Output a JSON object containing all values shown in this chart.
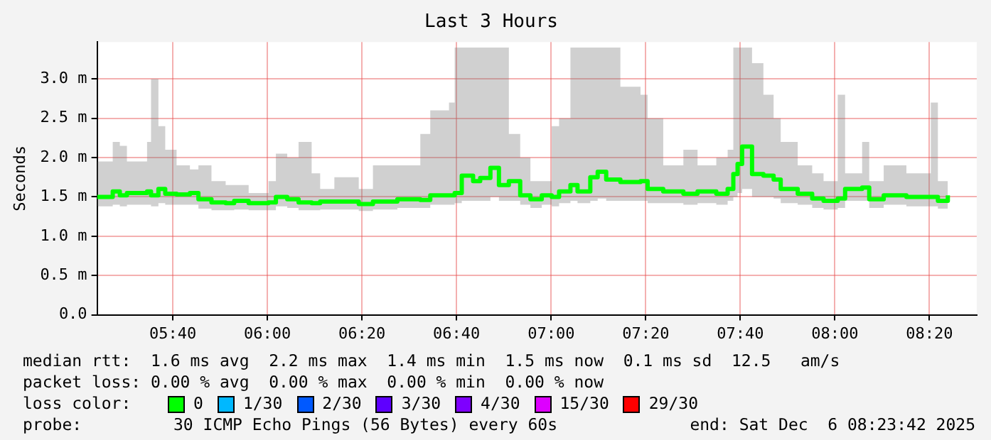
{
  "chart_data": {
    "type": "step",
    "title": "Last 3 Hours",
    "ylabel": "Seconds",
    "x": [
      5.4,
      5.455,
      5.48,
      5.505,
      5.576,
      5.59,
      5.616,
      5.64,
      5.68,
      5.727,
      5.757,
      5.803,
      5.853,
      5.883,
      5.934,
      6.004,
      6.03,
      6.07,
      6.11,
      6.156,
      6.186,
      6.236,
      6.322,
      6.372,
      6.458,
      6.539,
      6.574,
      6.64,
      6.66,
      6.685,
      6.725,
      6.75,
      6.786,
      6.816,
      6.851,
      6.891,
      6.927,
      6.967,
      7.002,
      7.028,
      7.068,
      7.093,
      7.138,
      7.164,
      7.194,
      7.244,
      7.315,
      7.34,
      7.395,
      7.466,
      7.516,
      7.582,
      7.622,
      7.642,
      7.657,
      7.673,
      7.698,
      7.708,
      7.748,
      7.784,
      7.809,
      7.869,
      7.92,
      7.96,
      8.01,
      8.036,
      8.096,
      8.121,
      8.172,
      8.252,
      8.338,
      8.363,
      8.398
    ],
    "series": [
      {
        "color": "#00ff00",
        "values": [
          1.5,
          1.57,
          1.52,
          1.55,
          1.57,
          1.52,
          1.6,
          1.54,
          1.53,
          1.55,
          1.47,
          1.43,
          1.42,
          1.45,
          1.42,
          1.43,
          1.5,
          1.47,
          1.43,
          1.42,
          1.44,
          1.44,
          1.41,
          1.44,
          1.47,
          1.46,
          1.52,
          1.52,
          1.55,
          1.77,
          1.7,
          1.74,
          1.87,
          1.65,
          1.7,
          1.52,
          1.47,
          1.52,
          1.5,
          1.57,
          1.65,
          1.57,
          1.75,
          1.82,
          1.72,
          1.69,
          1.7,
          1.6,
          1.57,
          1.54,
          1.57,
          1.54,
          1.6,
          1.79,
          1.92,
          2.14,
          2.14,
          1.79,
          1.77,
          1.72,
          1.6,
          1.54,
          1.48,
          1.45,
          1.48,
          1.6,
          1.62,
          1.47,
          1.52,
          1.5,
          1.5,
          1.45,
          1.52
        ],
        "lower": [
          1.38,
          1.4,
          1.38,
          1.4,
          1.4,
          1.38,
          1.42,
          1.4,
          1.4,
          1.4,
          1.35,
          1.33,
          1.33,
          1.34,
          1.33,
          1.33,
          1.38,
          1.36,
          1.33,
          1.33,
          1.34,
          1.34,
          1.32,
          1.34,
          1.36,
          1.36,
          1.4,
          1.4,
          1.42,
          1.45,
          1.45,
          1.45,
          1.5,
          1.45,
          1.45,
          1.4,
          1.36,
          1.4,
          1.38,
          1.42,
          1.45,
          1.42,
          1.45,
          1.48,
          1.45,
          1.45,
          1.45,
          1.42,
          1.42,
          1.4,
          1.42,
          1.4,
          1.45,
          1.5,
          1.55,
          1.6,
          1.6,
          1.5,
          1.5,
          1.48,
          1.42,
          1.4,
          1.36,
          1.34,
          1.36,
          1.45,
          1.45,
          1.36,
          1.4,
          1.38,
          1.38,
          1.35,
          1.4
        ],
        "upper": [
          1.95,
          2.2,
          2.15,
          1.95,
          2.2,
          3.0,
          2.4,
          2.1,
          1.9,
          1.85,
          1.9,
          1.7,
          1.65,
          1.65,
          1.55,
          1.7,
          2.05,
          2.0,
          2.2,
          1.8,
          1.6,
          1.75,
          1.6,
          1.9,
          1.9,
          2.3,
          2.6,
          2.7,
          3.4,
          3.4,
          3.4,
          3.4,
          3.4,
          3.4,
          2.3,
          2.0,
          1.7,
          1.7,
          2.4,
          2.5,
          3.4,
          3.4,
          3.4,
          3.4,
          3.4,
          2.9,
          2.8,
          2.5,
          1.9,
          2.1,
          1.9,
          2.0,
          2.1,
          3.4,
          3.4,
          3.4,
          3.4,
          3.2,
          2.8,
          2.5,
          2.2,
          1.9,
          1.8,
          1.7,
          2.8,
          1.8,
          2.2,
          1.7,
          1.9,
          1.8,
          2.7,
          1.7,
          1.7
        ]
      }
    ],
    "xlim": [
      5.4,
      8.5
    ],
    "xticks": [
      {
        "value": 5.6667,
        "label": "05:40"
      },
      {
        "value": 6,
        "label": "06:00"
      },
      {
        "value": 6.3333,
        "label": "06:20"
      },
      {
        "value": 6.6667,
        "label": "06:40"
      },
      {
        "value": 7,
        "label": "07:00"
      },
      {
        "value": 7.3333,
        "label": "07:20"
      },
      {
        "value": 7.6667,
        "label": "07:40"
      },
      {
        "value": 8,
        "label": "08:00"
      },
      {
        "value": 8.3333,
        "label": "08:20"
      }
    ],
    "ylim": [
      0,
      3.47
    ],
    "yticks": [
      {
        "value": 0,
        "label": "0.0"
      },
      {
        "value": 0.5,
        "label": "0.5 m"
      },
      {
        "value": 1,
        "label": "1.0 m"
      },
      {
        "value": 1.5,
        "label": "1.5 m"
      },
      {
        "value": 2,
        "label": "2.0 m"
      },
      {
        "value": 2.5,
        "label": "2.5 m"
      },
      {
        "value": 3,
        "label": "3.0 m"
      }
    ],
    "grid": true,
    "legend": false,
    "marker": "none",
    "line_style": "solid",
    "annotations": [
      "median rtt:  1.6 ms avg  2.2 ms max  1.4 ms min  1.5 ms now  0.1 ms sd  12.5   am/s",
      "packet loss: 0.00 % avg  0.00 % max  0.00 % min  0.00 % now",
      "loss color:",
      "0",
      "1/30",
      "2/30",
      "3/30",
      "4/30",
      "15/30",
      "29/30",
      "probe:",
      "30 ICMP Echo Pings (56 Bytes) every 60s",
      "end: Sat Dec  6 08:23:42 2025"
    ]
  }
}
